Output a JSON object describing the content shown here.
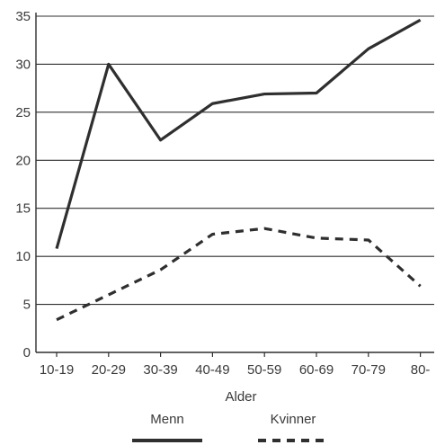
{
  "chart_data": {
    "type": "line",
    "title": "",
    "xlabel": "Alder",
    "ylabel": "",
    "categories": [
      "10-19",
      "20-29",
      "30-39",
      "40-49",
      "50-59",
      "60-69",
      "70-79",
      "80-"
    ],
    "ylim": [
      0,
      35
    ],
    "yticks": [
      0,
      5,
      10,
      15,
      20,
      25,
      30,
      35
    ],
    "grid": true,
    "legend_position": "bottom",
    "series": [
      {
        "name": "Menn",
        "style": "solid",
        "color": "#2f2f2f",
        "values": [
          10.8,
          30.0,
          22.1,
          25.9,
          26.9,
          27.0,
          31.6,
          34.6
        ]
      },
      {
        "name": "Kvinner",
        "style": "dashed",
        "color": "#2f2f2f",
        "values": [
          3.4,
          6.0,
          8.6,
          12.3,
          12.9,
          11.9,
          11.7,
          6.9
        ]
      }
    ]
  }
}
